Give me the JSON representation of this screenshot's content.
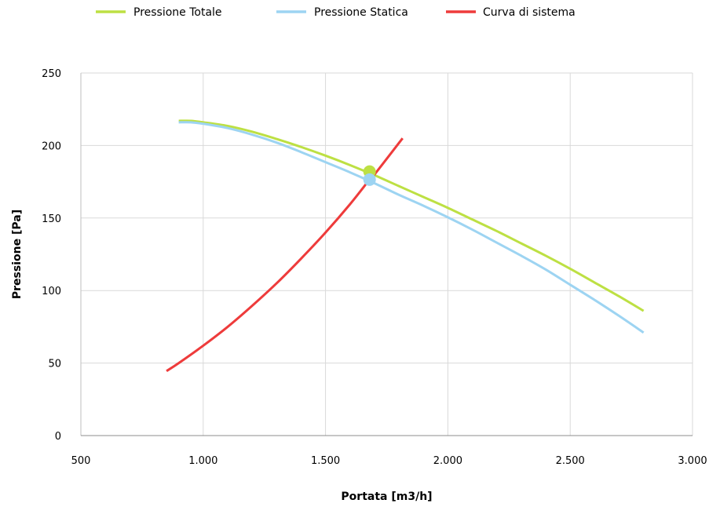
{
  "chart_data": {
    "type": "line",
    "title": "",
    "xlabel": "Portata [m3/h]",
    "ylabel": "Pressione [Pa]",
    "xlim": [
      500,
      3000
    ],
    "ylim": [
      0,
      250
    ],
    "x_ticks": [
      500,
      1000,
      1500,
      2000,
      2500,
      3000
    ],
    "x_tick_labels": [
      "500",
      "1.000",
      "1.500",
      "2.000",
      "2.500",
      "3.000"
    ],
    "y_ticks": [
      0,
      50,
      100,
      150,
      200,
      250
    ],
    "y_tick_labels": [
      "0",
      "50",
      "100",
      "150",
      "200",
      "250"
    ],
    "grid": true,
    "legend_position": "top",
    "series": [
      {
        "name": "Pressione Totale",
        "color": "#bde043",
        "x": [
          900,
          950,
          1000,
          1100,
          1200,
          1300,
          1400,
          1500,
          1600,
          1700,
          1800,
          1900,
          2000,
          2100,
          2200,
          2300,
          2400,
          2500,
          2600,
          2700,
          2800
        ],
        "y": [
          217,
          217,
          216,
          213.5,
          209.5,
          204.5,
          199,
          193,
          186.5,
          179.5,
          172,
          164.5,
          157,
          149,
          141,
          132.5,
          124,
          115,
          105.5,
          96,
          86
        ]
      },
      {
        "name": "Pressione Statica",
        "color": "#9dd4f2",
        "x": [
          900,
          950,
          1000,
          1100,
          1200,
          1300,
          1400,
          1500,
          1600,
          1700,
          1800,
          1900,
          2000,
          2100,
          2200,
          2300,
          2400,
          2500,
          2600,
          2700,
          2800
        ],
        "y": [
          216,
          216,
          215,
          212,
          207.5,
          202,
          195.5,
          188.5,
          181.5,
          174,
          166,
          158.5,
          150.5,
          142,
          133,
          124,
          114.5,
          104,
          93.5,
          82.5,
          71
        ]
      },
      {
        "name": "Curva di sistema",
        "color": "#ee3b3b",
        "x": [
          850,
          900,
          1000,
          1100,
          1200,
          1300,
          1400,
          1500,
          1600,
          1680,
          1700,
          1815
        ],
        "y": [
          44.5,
          50,
          62,
          75,
          89.5,
          105,
          122,
          140,
          159.5,
          176.5,
          180,
          205
        ]
      }
    ],
    "operating_points": [
      {
        "series": "Pressione Totale",
        "x": 1680,
        "y": 182,
        "color": "#bde043"
      },
      {
        "series": "Pressione Statica",
        "x": 1680,
        "y": 176.5,
        "color": "#9dd4f2"
      }
    ]
  }
}
